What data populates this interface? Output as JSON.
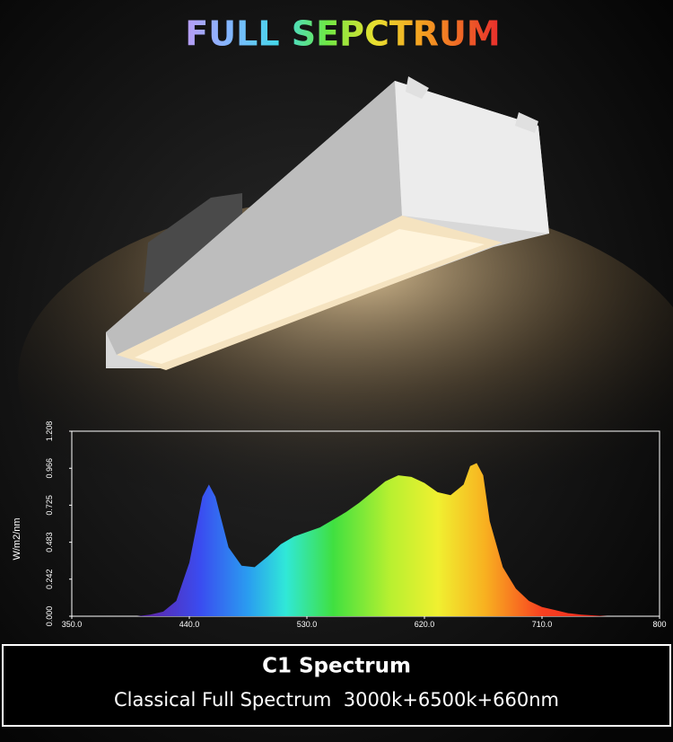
{
  "header": {
    "title": "FULL SEPCTRUM"
  },
  "chart_data": {
    "type": "area",
    "ylabel": "W/m2/nm",
    "x": [
      400,
      410,
      420,
      430,
      440,
      450,
      455,
      460,
      470,
      480,
      490,
      500,
      510,
      520,
      530,
      540,
      550,
      560,
      570,
      580,
      590,
      600,
      610,
      620,
      630,
      640,
      650,
      655,
      660,
      665,
      670,
      680,
      690,
      700,
      710,
      720,
      730,
      740,
      760
    ],
    "values": [
      0,
      0.01,
      0.03,
      0.1,
      0.35,
      0.78,
      0.86,
      0.78,
      0.45,
      0.33,
      0.32,
      0.39,
      0.47,
      0.52,
      0.55,
      0.58,
      0.63,
      0.68,
      0.74,
      0.81,
      0.88,
      0.92,
      0.91,
      0.87,
      0.81,
      0.79,
      0.86,
      0.98,
      1.0,
      0.92,
      0.62,
      0.32,
      0.18,
      0.1,
      0.06,
      0.04,
      0.02,
      0.01,
      0
    ],
    "xlim": [
      350,
      800
    ],
    "xticks": [
      {
        "value": 350,
        "label": "350.0"
      },
      {
        "value": 440,
        "label": "440.0"
      },
      {
        "value": 530,
        "label": "530.0"
      },
      {
        "value": 620,
        "label": "620.0"
      },
      {
        "value": 710,
        "label": "710.0"
      },
      800
    ],
    "ylim": [
      0,
      1.208
    ],
    "yticks": [
      {
        "value": 0,
        "label": "0.000"
      },
      0.242,
      0.483,
      0.725,
      0.966,
      1.208
    ]
  },
  "caption": {
    "title": "C1 Spectrum",
    "subtitle": "Classical Full Spectrum  3000k+6500k+660nm"
  }
}
